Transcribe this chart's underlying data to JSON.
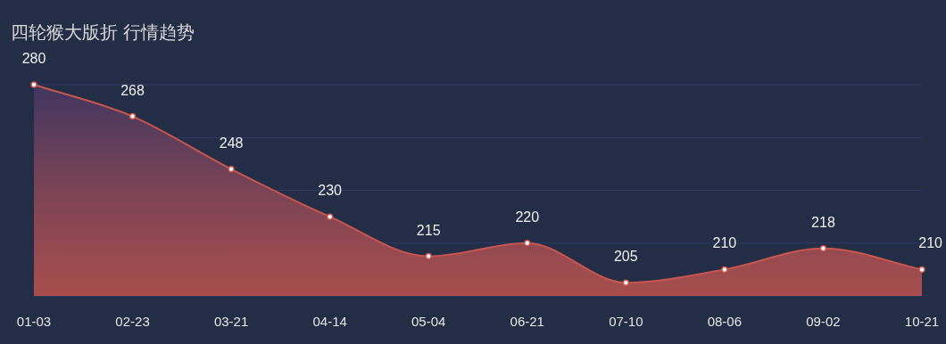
{
  "chart_data": {
    "type": "area",
    "title": "四轮猴大版折 行情趋势",
    "categories": [
      "01-03",
      "02-23",
      "03-21",
      "04-14",
      "05-04",
      "06-21",
      "07-10",
      "08-06",
      "09-02",
      "10-21"
    ],
    "series": [
      {
        "color": "#c8564e",
        "values": [
          280,
          268,
          248,
          230,
          215,
          220,
          205,
          210,
          218,
          210
        ]
      }
    ],
    "ylim": [
      200,
      280
    ],
    "yticks": [
      200,
      220,
      240,
      260,
      280
    ],
    "tick_labels": "x",
    "grid": "y",
    "data_labels": true,
    "marker": "circle"
  }
}
